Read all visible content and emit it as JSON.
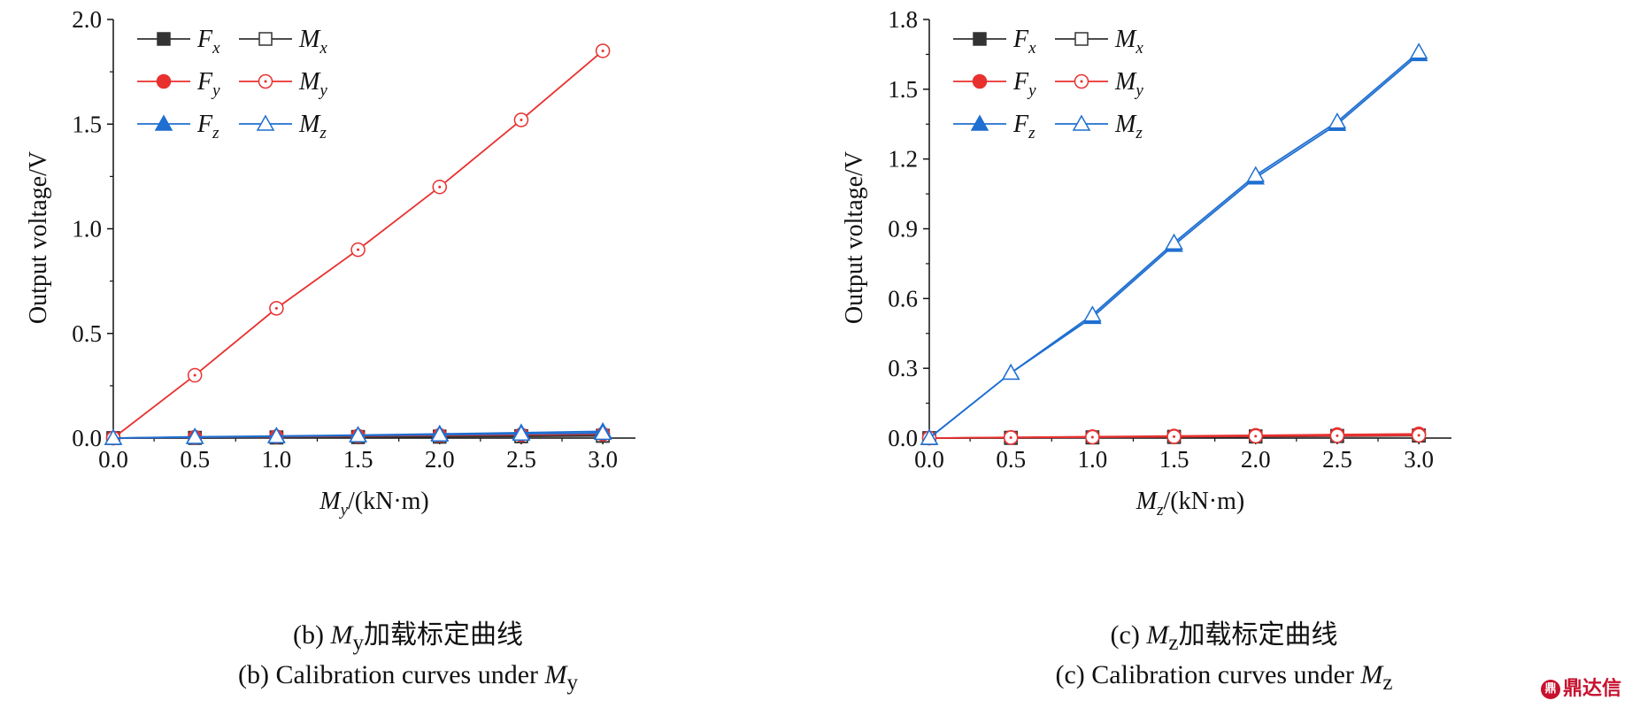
{
  "chart_data": [
    {
      "type": "line",
      "panel": "b",
      "xlabel_symbol": "M",
      "xlabel_subscript": "y",
      "xlabel_unit": "/(kN·m)",
      "ylabel": "Output voltage/V",
      "xlim": [
        0,
        3.2
      ],
      "ylim": [
        0,
        2.0
      ],
      "xticks": [
        "0.0",
        "0.5",
        "1.0",
        "1.5",
        "2.0",
        "2.5",
        "3.0"
      ],
      "yticks": [
        "0.0",
        "0.5",
        "1.0",
        "1.5",
        "2.0"
      ],
      "legend": "top-left",
      "x": [
        0.0,
        0.5,
        1.0,
        1.5,
        2.0,
        2.5,
        3.0
      ],
      "series": [
        {
          "name": "Fx",
          "sym": "F",
          "sub": "x",
          "color": "#333333",
          "marker": "square",
          "filled": true,
          "values": [
            0.0,
            0.0,
            0.002,
            0.004,
            0.006,
            0.008,
            0.01
          ]
        },
        {
          "name": "Mx",
          "sym": "M",
          "sub": "x",
          "color": "#333333",
          "marker": "square",
          "filled": false,
          "values": [
            0.0,
            0.002,
            0.004,
            0.006,
            0.008,
            0.01,
            0.012
          ]
        },
        {
          "name": "Fy",
          "sym": "F",
          "sub": "y",
          "color": "#e8312f",
          "marker": "circle",
          "filled": true,
          "values": [
            0.0,
            0.004,
            0.007,
            0.01,
            0.013,
            0.016,
            0.019
          ]
        },
        {
          "name": "My",
          "sym": "M",
          "sub": "y",
          "color": "#e8312f",
          "marker": "circle",
          "filled": false,
          "values": [
            0.0,
            0.3,
            0.62,
            0.9,
            1.2,
            1.52,
            1.85
          ]
        },
        {
          "name": "Fz",
          "sym": "F",
          "sub": "z",
          "color": "#1f6fd1",
          "marker": "triangle",
          "filled": true,
          "values": [
            0.0,
            0.006,
            0.01,
            0.014,
            0.02,
            0.026,
            0.032
          ]
        },
        {
          "name": "Mz",
          "sym": "M",
          "sub": "z",
          "color": "#1f6fd1",
          "marker": "triangle",
          "filled": false,
          "values": [
            0.0,
            0.004,
            0.008,
            0.012,
            0.016,
            0.02,
            0.024
          ]
        }
      ]
    },
    {
      "type": "line",
      "panel": "c",
      "xlabel_symbol": "M",
      "xlabel_subscript": "z",
      "xlabel_unit": "/(kN·m)",
      "ylabel": "Output voltage/V",
      "xlim": [
        0,
        3.2
      ],
      "ylim": [
        0,
        1.8
      ],
      "xticks": [
        "0.0",
        "0.5",
        "1.0",
        "1.5",
        "2.0",
        "2.5",
        "3.0"
      ],
      "yticks": [
        "0.0",
        "0.3",
        "0.6",
        "0.9",
        "1.2",
        "1.5",
        "1.8"
      ],
      "legend": "top-left",
      "x": [
        0.0,
        0.5,
        1.0,
        1.5,
        2.0,
        2.5,
        3.0
      ],
      "series": [
        {
          "name": "Fx",
          "sym": "F",
          "sub": "x",
          "color": "#333333",
          "marker": "square",
          "filled": true,
          "values": [
            0.0,
            0.0,
            0.002,
            0.004,
            0.006,
            0.008,
            0.01
          ]
        },
        {
          "name": "Mx",
          "sym": "M",
          "sub": "x",
          "color": "#333333",
          "marker": "square",
          "filled": false,
          "values": [
            0.0,
            0.002,
            0.004,
            0.006,
            0.008,
            0.01,
            0.012
          ]
        },
        {
          "name": "Fy",
          "sym": "F",
          "sub": "y",
          "color": "#e8312f",
          "marker": "circle",
          "filled": true,
          "values": [
            0.0,
            0.003,
            0.006,
            0.009,
            0.012,
            0.015,
            0.018
          ]
        },
        {
          "name": "My",
          "sym": "M",
          "sub": "y",
          "color": "#e8312f",
          "marker": "circle",
          "filled": false,
          "values": [
            0.0,
            0.002,
            0.004,
            0.006,
            0.008,
            0.01,
            0.012
          ]
        },
        {
          "name": "Fz",
          "sym": "F",
          "sub": "z",
          "color": "#1f6fd1",
          "marker": "triangle",
          "filled": true,
          "values": [
            0.0,
            0.28,
            0.52,
            0.83,
            1.12,
            1.35,
            1.65
          ]
        },
        {
          "name": "Mz",
          "sym": "M",
          "sub": "z",
          "color": "#1f6fd1",
          "marker": "triangle",
          "filled": false,
          "values": [
            0.0,
            0.28,
            0.53,
            0.84,
            1.13,
            1.36,
            1.66
          ]
        }
      ]
    }
  ],
  "captions": [
    {
      "cn_prefix": "(b) ",
      "cn_symbol": "M",
      "cn_subscript": "y",
      "cn_text": "加载标定曲线",
      "en_text": "(b) Calibration curves under ",
      "en_symbol": "M",
      "en_subscript": "y"
    },
    {
      "cn_prefix": "(c) ",
      "cn_symbol": "M",
      "cn_subscript": "z",
      "cn_text": "加载标定曲线",
      "en_text": "(c) Calibration curves under ",
      "en_symbol": "M",
      "en_subscript": "z"
    }
  ],
  "watermark": {
    "logo": "鼎",
    "text": "鼎达信"
  }
}
